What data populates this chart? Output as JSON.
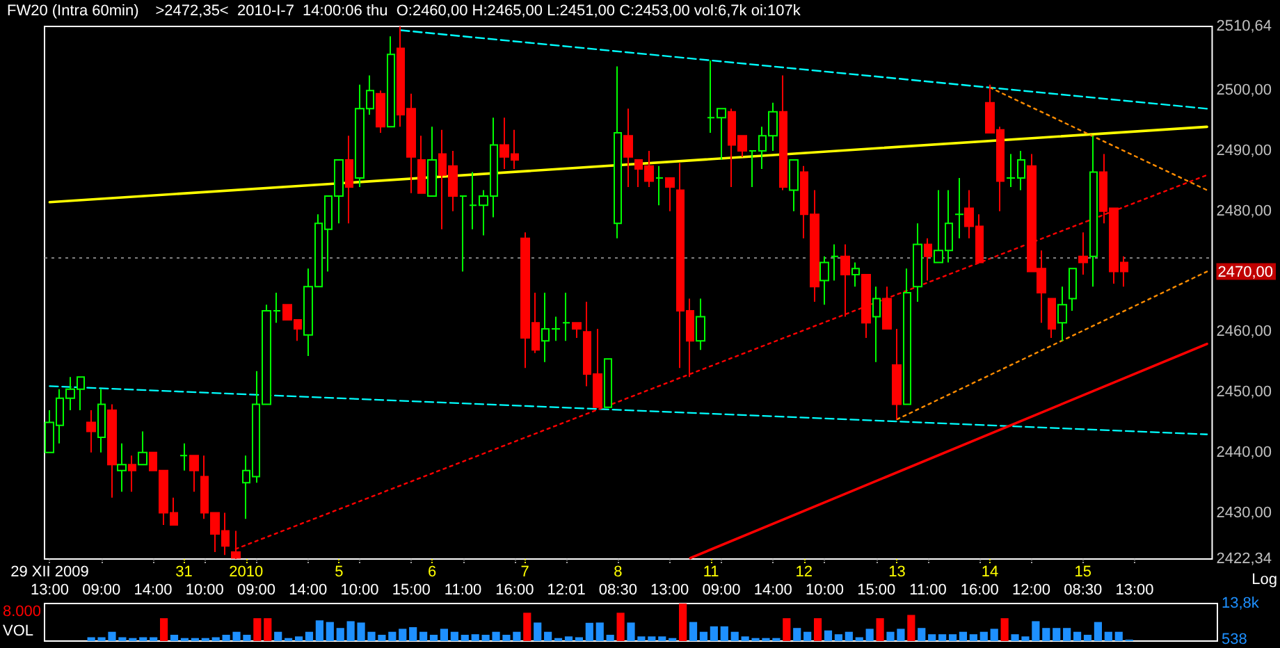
{
  "chart_data": [
    {
      "type": "candlestick",
      "title": "FW20 (Intra 60min)",
      "subtitle": ">2472,35<  2010-I-7  14:00:06 thu  O:2460,00 H:2465,00 L:2451,00 C:2453,00 vol:6,7k oi:107k",
      "categories": [
        "29 XII 2009\n13:00",
        null,
        null,
        null,
        null,
        "\n09:00",
        null,
        null,
        null,
        null,
        "\n14:00",
        null,
        null,
        "31",
        null,
        "\n10:00",
        null,
        null,
        null,
        "2010",
        "\n09:00",
        null,
        null,
        null,
        null,
        "\n14:00",
        null,
        null,
        "5",
        null,
        "\n10:00",
        null,
        null,
        null,
        null,
        "\n15:00",
        null,
        "6",
        null,
        null,
        "\n11:00",
        null,
        null,
        null,
        null,
        "\n16:00",
        "7",
        null,
        null,
        null,
        "\n12:01",
        null,
        null,
        null,
        null,
        "8\n08:30",
        null,
        null,
        null,
        null,
        "\n13:00",
        null,
        null,
        null,
        "11",
        "\n09:00",
        null,
        null,
        null,
        null,
        "\n14:00",
        null,
        null,
        "12",
        null,
        "\n10:00",
        null,
        null,
        null,
        null,
        "\n15:00",
        null,
        "13",
        null,
        null,
        "\n11:00",
        null,
        null,
        null,
        null,
        "\n16:00",
        "14",
        null,
        null,
        null,
        "\n12:00",
        null,
        null,
        null,
        null,
        "15\n08:30",
        null,
        null,
        null,
        null,
        "\n13:00",
        null,
        null,
        null,
        null,
        null,
        null,
        null
      ],
      "ohlc": [
        [
          2440,
          2447,
          2440,
          2445
        ],
        [
          2444.5,
          2450.5,
          2441.5,
          2449
        ],
        [
          2449,
          2452.5,
          2447,
          2450.5
        ],
        [
          2450.5,
          2452.5,
          2447,
          2452.5
        ],
        [
          2445,
          2447,
          2440,
          2443.5
        ],
        [
          2442.5,
          2450.5,
          2440,
          2448
        ],
        [
          2447,
          2448,
          2432.5,
          2438
        ],
        [
          2437,
          2441.5,
          2433.5,
          2438
        ],
        [
          2438,
          2439.5,
          2433.5,
          2437
        ],
        [
          2438,
          2443.5,
          2438,
          2440
        ],
        [
          2440,
          2440,
          2437,
          2437
        ],
        [
          2437,
          2437,
          2428,
          2430
        ],
        [
          2430,
          2432.5,
          2428,
          2428
        ],
        [
          2439.5,
          2441.5,
          2437,
          2439.5
        ],
        [
          2439.5,
          2439.5,
          2433.5,
          2437
        ],
        [
          2436,
          2439.5,
          2429,
          2430
        ],
        [
          2430,
          2430,
          2423.5,
          2426.5
        ],
        [
          2427,
          2430,
          2423,
          2424.5
        ],
        [
          2423.5,
          2427,
          2422.34,
          2422.5
        ],
        [
          2435,
          2439.5,
          2429,
          2437
        ],
        [
          2436,
          2453.5,
          2435,
          2448
        ],
        [
          2448,
          2464.5,
          2448,
          2463.5
        ],
        [
          2463.5,
          2466.5,
          2461.5,
          2463.5
        ],
        [
          2464.5,
          2464.5,
          2462,
          2462
        ],
        [
          2462,
          2462,
          2458.5,
          2460.5
        ],
        [
          2459.5,
          2470.5,
          2456,
          2467.5
        ],
        [
          2467.5,
          2479.5,
          2467.5,
          2478
        ],
        [
          2477,
          2482.5,
          2470,
          2482.5
        ],
        [
          2482.5,
          2488.5,
          2478,
          2488.5
        ],
        [
          2488.5,
          2492.5,
          2478,
          2484
        ],
        [
          2485.5,
          2501,
          2484,
          2497
        ],
        [
          2497,
          2502.5,
          2496,
          2500
        ],
        [
          2499.5,
          2500,
          2493,
          2494
        ],
        [
          2494,
          2509,
          2494,
          2506
        ],
        [
          2507,
          2510.64,
          2494,
          2496
        ],
        [
          2497,
          2499.5,
          2483,
          2489
        ],
        [
          2488.5,
          2492.5,
          2483,
          2483
        ],
        [
          2482.5,
          2494,
          2482.5,
          2488.5
        ],
        [
          2489.5,
          2493.5,
          2477,
          2486
        ],
        [
          2487.5,
          2490,
          2480,
          2482.5
        ],
        [
          2482.5,
          2482.5,
          2470,
          2482.5
        ],
        [
          2481,
          2486.5,
          2477,
          2481
        ],
        [
          2481,
          2483.5,
          2476,
          2482.5
        ],
        [
          2482.5,
          2495.5,
          2479,
          2491
        ],
        [
          2491,
          2495.5,
          2487,
          2489
        ],
        [
          2489.5,
          2493.5,
          2487,
          2488.5
        ],
        [
          2475.5,
          2476.5,
          2454,
          2459
        ],
        [
          2461.5,
          2466.5,
          2456.5,
          2457
        ],
        [
          2458.5,
          2466.5,
          2455,
          2460.5
        ],
        [
          2460.5,
          2462.5,
          2458.5,
          2460.5
        ],
        [
          2461.5,
          2466.5,
          2458.5,
          2461.5
        ],
        [
          2461.5,
          2461.5,
          2459,
          2460.5
        ],
        [
          2460,
          2465,
          2451,
          2453
        ],
        [
          2453,
          2460.5,
          2447.5,
          2447.5
        ],
        [
          2447.5,
          2455.5,
          2447.5,
          2455.5
        ],
        [
          2478,
          2504,
          2475.5,
          2493
        ],
        [
          2492.5,
          2497,
          2484,
          2489
        ],
        [
          2488.5,
          2488.5,
          2484,
          2487
        ],
        [
          2487.5,
          2490,
          2484,
          2485
        ],
        [
          2485.5,
          2487.5,
          2481,
          2485.5
        ],
        [
          2485.5,
          2485.5,
          2480,
          2484
        ],
        [
          2483.5,
          2488,
          2454,
          2463.5
        ],
        [
          2463.5,
          2465.5,
          2452.5,
          2458.5
        ],
        [
          2458.5,
          2465.5,
          2457,
          2462.5
        ],
        [
          2495.5,
          2505,
          2493,
          2495.5
        ],
        [
          2495.5,
          2497,
          2488.5,
          2497
        ],
        [
          2496.5,
          2497,
          2484,
          2491
        ],
        [
          2492.5,
          2492.5,
          2489,
          2490
        ],
        [
          2490,
          2490,
          2484,
          2490
        ],
        [
          2490,
          2494,
          2487,
          2492.5
        ],
        [
          2492.5,
          2498,
          2490,
          2496.5
        ],
        [
          2496.5,
          2502.5,
          2483.5,
          2484
        ],
        [
          2483.5,
          2488.5,
          2480,
          2488.5
        ],
        [
          2486.5,
          2487.5,
          2475.5,
          2479.5
        ],
        [
          2479.5,
          2483.5,
          2465,
          2467.5
        ],
        [
          2468.5,
          2472.5,
          2464.5,
          2471.5
        ],
        [
          2472.5,
          2474.5,
          2468.5,
          2472.5
        ],
        [
          2472.5,
          2474.5,
          2462.5,
          2469.5
        ],
        [
          2469.5,
          2471.5,
          2467.5,
          2470.5
        ],
        [
          2469.5,
          2469.5,
          2459,
          2461.5
        ],
        [
          2462.5,
          2467.5,
          2455,
          2465.5
        ],
        [
          2465.5,
          2467.5,
          2460.5,
          2460.5
        ],
        [
          2454.5,
          2460.5,
          2445.5,
          2448
        ],
        [
          2448,
          2470.5,
          2448,
          2466.5
        ],
        [
          2467.5,
          2478,
          2465,
          2474.5
        ],
        [
          2474.5,
          2475.5,
          2468.5,
          2472.5
        ],
        [
          2471.5,
          2483.5,
          2471.5,
          2473.5
        ],
        [
          2473.5,
          2483.5,
          2471.5,
          2478
        ],
        [
          2479.5,
          2485.5,
          2475.5,
          2479.5
        ],
        [
          2480.5,
          2483.5,
          2475.5,
          2477.5
        ],
        [
          2477.5,
          2479.5,
          2471.5,
          2471.5
        ],
        [
          2498,
          2501,
          2493,
          2493
        ],
        [
          2493.5,
          2494,
          2480,
          2485
        ],
        [
          2485.5,
          2489.5,
          2484,
          2485.5
        ],
        [
          2485.5,
          2490,
          2483.5,
          2488.5
        ],
        [
          2487.5,
          2489.5,
          2470,
          2470
        ],
        [
          2470.5,
          2473.5,
          2461.5,
          2466.5
        ],
        [
          2465.5,
          2465.5,
          2459,
          2460.5
        ],
        [
          2461.5,
          2467.5,
          2458.5,
          2464.5
        ],
        [
          2465.5,
          2470.5,
          2463.5,
          2470.5
        ],
        [
          2472.5,
          2476.5,
          2469.5,
          2471.5
        ],
        [
          2472.5,
          2492.5,
          2467.5,
          2486.5
        ],
        [
          2486.5,
          2489.5,
          2478,
          2480
        ],
        [
          2480.5,
          2480.5,
          2468,
          2470
        ],
        [
          2471.5,
          2472.5,
          2467.5,
          2470
        ],
        null,
        null,
        null,
        null,
        null,
        null,
        null,
        null
      ],
      "series": [
        {
          "type": "line",
          "color": "#ffff00",
          "line_style": "solid",
          "values": [
            2481.5,
            null,
            null,
            null,
            null,
            null,
            null,
            null,
            null,
            null,
            null,
            null,
            null,
            null,
            null,
            null,
            null,
            null,
            null,
            null,
            null,
            null,
            null,
            null,
            null,
            null,
            null,
            null,
            null,
            null,
            null,
            null,
            null,
            null,
            null,
            null,
            null,
            null,
            null,
            null,
            null,
            null,
            null,
            null,
            null,
            null,
            null,
            null,
            null,
            null,
            null,
            null,
            null,
            null,
            null,
            null,
            null,
            null,
            null,
            null,
            null,
            null,
            null,
            null,
            null,
            null,
            null,
            null,
            null,
            null,
            null,
            null,
            null,
            null,
            null,
            null,
            null,
            null,
            null,
            null,
            null,
            null,
            null,
            null,
            null,
            null,
            null,
            null,
            null,
            null,
            null,
            null,
            null,
            null,
            null,
            null,
            null,
            null,
            null,
            null,
            null,
            null,
            null,
            null,
            null,
            null,
            null,
            null,
            null,
            null,
            null,
            null,
            2494
          ]
        },
        {
          "type": "line",
          "color": "#00ffff",
          "line_style": "dashed",
          "values": [
            null,
            null,
            null,
            null,
            null,
            null,
            null,
            null,
            null,
            null,
            null,
            null,
            null,
            null,
            null,
            null,
            null,
            null,
            null,
            null,
            null,
            null,
            null,
            null,
            null,
            null,
            null,
            null,
            null,
            null,
            null,
            null,
            null,
            null,
            2510,
            null,
            null,
            null,
            null,
            null,
            null,
            null,
            null,
            null,
            null,
            null,
            null,
            null,
            null,
            null,
            null,
            null,
            null,
            null,
            null,
            null,
            null,
            null,
            null,
            null,
            null,
            null,
            null,
            null,
            null,
            null,
            null,
            null,
            null,
            null,
            null,
            null,
            null,
            null,
            null,
            null,
            null,
            null,
            null,
            null,
            null,
            null,
            null,
            null,
            null,
            null,
            null,
            null,
            null,
            null,
            null,
            null,
            null,
            null,
            null,
            null,
            null,
            null,
            null,
            null,
            null,
            null,
            null,
            null,
            null,
            null,
            null,
            null,
            null,
            null,
            null,
            null,
            2497
          ]
        },
        {
          "type": "line",
          "color": "#00ffff",
          "line_style": "dashed",
          "values": [
            2451,
            null,
            null,
            null,
            null,
            null,
            null,
            null,
            null,
            null,
            null,
            null,
            null,
            null,
            null,
            null,
            null,
            null,
            null,
            null,
            null,
            null,
            null,
            null,
            null,
            null,
            null,
            null,
            null,
            null,
            null,
            null,
            null,
            null,
            null,
            null,
            null,
            null,
            null,
            null,
            null,
            null,
            null,
            null,
            null,
            null,
            null,
            null,
            null,
            null,
            null,
            null,
            null,
            null,
            null,
            null,
            null,
            null,
            null,
            null,
            null,
            null,
            null,
            null,
            null,
            null,
            null,
            null,
            null,
            null,
            null,
            null,
            null,
            null,
            null,
            null,
            null,
            null,
            null,
            null,
            null,
            null,
            null,
            null,
            null,
            null,
            null,
            null,
            null,
            null,
            null,
            null,
            null,
            null,
            null,
            null,
            null,
            null,
            null,
            null,
            null,
            null,
            null,
            null,
            null,
            null,
            null,
            null,
            null,
            null,
            null,
            null,
            2443
          ]
        },
        {
          "type": "line",
          "color": "#ff0000",
          "line_style": "dotted",
          "values": [
            null,
            null,
            null,
            null,
            null,
            null,
            null,
            null,
            null,
            null,
            null,
            null,
            null,
            null,
            null,
            null,
            null,
            null,
            2424,
            null,
            null,
            null,
            null,
            null,
            null,
            null,
            null,
            null,
            null,
            null,
            null,
            null,
            null,
            null,
            null,
            null,
            null,
            null,
            null,
            null,
            null,
            null,
            null,
            null,
            null,
            null,
            null,
            null,
            null,
            null,
            null,
            null,
            null,
            null,
            null,
            null,
            null,
            null,
            null,
            null,
            null,
            null,
            null,
            null,
            null,
            null,
            null,
            null,
            null,
            null,
            null,
            null,
            null,
            null,
            null,
            null,
            null,
            null,
            null,
            null,
            null,
            null,
            null,
            null,
            null,
            null,
            null,
            null,
            null,
            null,
            null,
            null,
            null,
            null,
            null,
            null,
            null,
            null,
            null,
            null,
            null,
            null,
            null,
            null,
            null,
            null,
            null,
            null,
            null,
            null,
            null,
            null,
            2486
          ]
        },
        {
          "type": "line",
          "color": "#ff8c00",
          "line_style": "dotted",
          "values": [
            null,
            null,
            null,
            null,
            null,
            null,
            null,
            null,
            null,
            null,
            null,
            null,
            null,
            null,
            null,
            null,
            null,
            null,
            null,
            null,
            null,
            null,
            null,
            null,
            null,
            null,
            null,
            null,
            null,
            null,
            null,
            null,
            null,
            null,
            null,
            null,
            null,
            null,
            null,
            null,
            null,
            null,
            null,
            null,
            null,
            null,
            null,
            null,
            null,
            null,
            null,
            null,
            null,
            null,
            null,
            null,
            null,
            null,
            null,
            null,
            null,
            null,
            null,
            null,
            null,
            null,
            null,
            null,
            null,
            null,
            null,
            null,
            null,
            null,
            null,
            null,
            null,
            null,
            null,
            null,
            null,
            null,
            null,
            null,
            null,
            null,
            null,
            null,
            null,
            null,
            null,
            2500.5,
            null,
            null,
            null,
            null,
            null,
            null,
            null,
            null,
            null,
            null,
            null,
            null,
            null,
            null,
            null,
            null,
            null,
            null,
            null,
            null,
            2483.5
          ]
        },
        {
          "type": "line",
          "color": "#ff8c00",
          "line_style": "dotted",
          "values": [
            null,
            null,
            null,
            null,
            null,
            null,
            null,
            null,
            null,
            null,
            null,
            null,
            null,
            null,
            null,
            null,
            null,
            null,
            null,
            null,
            null,
            null,
            null,
            null,
            null,
            null,
            null,
            null,
            null,
            null,
            null,
            null,
            null,
            null,
            null,
            null,
            null,
            null,
            null,
            null,
            null,
            null,
            null,
            null,
            null,
            null,
            null,
            null,
            null,
            null,
            null,
            null,
            null,
            null,
            null,
            null,
            null,
            null,
            null,
            null,
            null,
            null,
            null,
            null,
            null,
            null,
            null,
            null,
            null,
            null,
            null,
            null,
            null,
            null,
            null,
            null,
            null,
            null,
            null,
            null,
            null,
            null,
            2445.5,
            null,
            null,
            null,
            null,
            null,
            null,
            null,
            null,
            null,
            null,
            null,
            null,
            null,
            null,
            null,
            null,
            null,
            null,
            null,
            null,
            null,
            null,
            null,
            null,
            null,
            null,
            null,
            null,
            null,
            2470
          ]
        },
        {
          "type": "line",
          "color": "#ff0000",
          "line_style": "solid",
          "values": [
            null,
            null,
            null,
            null,
            null,
            null,
            null,
            null,
            null,
            null,
            null,
            null,
            null,
            null,
            null,
            null,
            null,
            null,
            null,
            null,
            null,
            null,
            null,
            null,
            null,
            null,
            null,
            null,
            null,
            null,
            null,
            null,
            null,
            null,
            null,
            null,
            null,
            null,
            null,
            null,
            null,
            null,
            null,
            null,
            null,
            null,
            null,
            null,
            null,
            null,
            null,
            null,
            null,
            null,
            null,
            null,
            null,
            null,
            null,
            null,
            null,
            null,
            2422.5,
            null,
            null,
            null,
            null,
            null,
            null,
            null,
            null,
            null,
            null,
            null,
            null,
            null,
            null,
            null,
            null,
            null,
            null,
            null,
            null,
            null,
            null,
            null,
            null,
            null,
            null,
            null,
            null,
            null,
            null,
            null,
            null,
            null,
            null,
            null,
            null,
            null,
            null,
            null,
            null,
            null,
            null,
            null,
            null,
            null,
            null,
            null,
            null,
            null,
            2458
          ]
        }
      ],
      "ylim": [
        2422.34,
        2510.64
      ],
      "yticks": [
        {
          "value": 2422.34,
          "label": "2422,34"
        },
        {
          "value": 2430,
          "label": "2430,00"
        },
        {
          "value": 2440,
          "label": "2440,00"
        },
        {
          "value": 2450,
          "label": "2450,00"
        },
        {
          "value": 2460,
          "label": "2460,00"
        },
        {
          "value": 2470,
          "label": "2470,00"
        },
        {
          "value": 2480,
          "label": "2480,00"
        },
        {
          "value": 2490,
          "label": "2490,00"
        },
        {
          "value": 2500,
          "label": "2500,00"
        },
        {
          "value": 2510.64,
          "label": "2510,64"
        }
      ],
      "ref_lines": [
        {
          "axis": "y",
          "value": 2472.35,
          "color": "#808080",
          "line_style": "dotted"
        }
      ],
      "annotations": [
        "Log"
      ]
    },
    {
      "type": "bar",
      "values": [
        null,
        null,
        null,
        null,
        1400,
        1400,
        3400,
        1400,
        1100,
        1400,
        1400,
        8400,
        2300,
        1100,
        1100,
        1100,
        1400,
        2300,
        3400,
        2300,
        8400,
        8400,
        3400,
        1100,
        1700,
        3400,
        7600,
        7000,
        4800,
        7300,
        6800,
        3400,
        2300,
        3400,
        4500,
        5100,
        3400,
        2300,
        4500,
        3400,
        2300,
        2500,
        2300,
        3400,
        2300,
        3400,
        10400,
        6800,
        3400,
        1100,
        1700,
        1400,
        6700,
        6800,
        2300,
        10400,
        6800,
        1700,
        1700,
        1700,
        1100,
        13800,
        7000,
        3400,
        5400,
        5400,
        3400,
        1700,
        1100,
        1100,
        1100,
        8400,
        4800,
        3400,
        8400,
        3900,
        2500,
        3400,
        1400,
        4500,
        8400,
        3400,
        4500,
        9600,
        4800,
        2500,
        2500,
        2500,
        3400,
        2500,
        3400,
        4500,
        8400,
        2500,
        1700,
        7300,
        4800,
        4800,
        4800,
        3400,
        2300,
        7000,
        3400,
        3400,
        538,
        null,
        null,
        null,
        null,
        null,
        null,
        null,
        null
      ],
      "colors": [
        null,
        null,
        null,
        null,
        "#1e90ff",
        "#1e90ff",
        "#1e90ff",
        "#1e90ff",
        "#1e90ff",
        "#1e90ff",
        "#1e90ff",
        "#ff0000",
        "#1e90ff",
        "#1e90ff",
        "#1e90ff",
        "#1e90ff",
        "#1e90ff",
        "#1e90ff",
        "#1e90ff",
        "#1e90ff",
        "#ff0000",
        "#ff0000",
        "#1e90ff",
        "#1e90ff",
        "#1e90ff",
        "#1e90ff",
        "#1e90ff",
        "#1e90ff",
        "#1e90ff",
        "#1e90ff",
        "#1e90ff",
        "#1e90ff",
        "#1e90ff",
        "#1e90ff",
        "#1e90ff",
        "#1e90ff",
        "#1e90ff",
        "#1e90ff",
        "#1e90ff",
        "#1e90ff",
        "#1e90ff",
        "#1e90ff",
        "#1e90ff",
        "#1e90ff",
        "#1e90ff",
        "#1e90ff",
        "#ff0000",
        "#1e90ff",
        "#1e90ff",
        "#1e90ff",
        "#1e90ff",
        "#1e90ff",
        "#1e90ff",
        "#1e90ff",
        "#1e90ff",
        "#ff0000",
        "#1e90ff",
        "#1e90ff",
        "#1e90ff",
        "#1e90ff",
        "#1e90ff",
        "#ff0000",
        "#1e90ff",
        "#1e90ff",
        "#1e90ff",
        "#1e90ff",
        "#1e90ff",
        "#1e90ff",
        "#1e90ff",
        "#1e90ff",
        "#1e90ff",
        "#ff0000",
        "#1e90ff",
        "#1e90ff",
        "#ff0000",
        "#1e90ff",
        "#1e90ff",
        "#1e90ff",
        "#1e90ff",
        "#1e90ff",
        "#ff0000",
        "#1e90ff",
        "#1e90ff",
        "#ff0000",
        "#1e90ff",
        "#1e90ff",
        "#1e90ff",
        "#1e90ff",
        "#1e90ff",
        "#1e90ff",
        "#1e90ff",
        "#1e90ff",
        "#ff0000",
        "#1e90ff",
        "#1e90ff",
        "#1e90ff",
        "#1e90ff",
        "#1e90ff",
        "#1e90ff",
        "#1e90ff",
        "#1e90ff",
        "#1e90ff",
        "#1e90ff",
        "#1e90ff",
        "#1e90ff",
        null,
        null,
        null,
        null,
        null,
        null,
        null,
        null
      ],
      "ylim": [
        0,
        13800
      ],
      "yticks": [
        {
          "value": 538,
          "label": "538"
        },
        {
          "value": 13800,
          "label": "13,8k"
        }
      ],
      "tick_labels": "y",
      "annotations": [
        "8.000",
        "VOL"
      ]
    }
  ]
}
